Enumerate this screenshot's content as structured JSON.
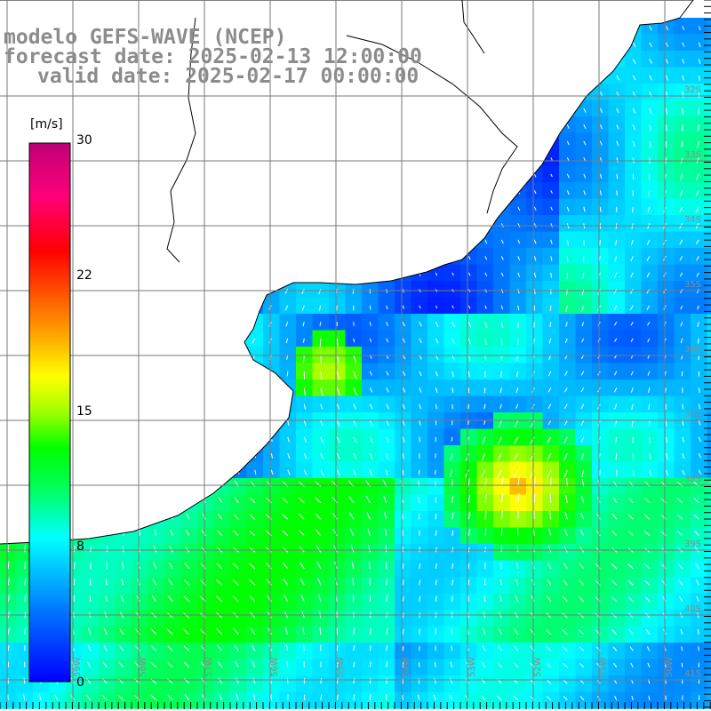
{
  "title": {
    "line1": "modelo GEFS-WAVE (NCEP)",
    "line2": "forecast date: 2025-02-13 12:00:00",
    "line3": "valid date: 2025-02-17 00:00:00"
  },
  "colorbar": {
    "unit": "[m/s]",
    "ticks": [
      "30",
      "22",
      "15",
      "8",
      "0"
    ],
    "range": [
      0,
      30
    ],
    "colors": [
      "#0000ff",
      "#00a0ff",
      "#00ffff",
      "#00ff00",
      "#a0ff00",
      "#ffff00",
      "#ff8000",
      "#ff0000",
      "#ff0080",
      "#c00080"
    ]
  },
  "lat_labels": [
    "32S",
    "33S",
    "34S",
    "35S",
    "36S",
    "37S",
    "38S",
    "39S",
    "40S",
    "41S"
  ],
  "lon_labels": [
    "59W",
    "58W",
    "57W",
    "56W",
    "55W",
    "54W",
    "53W",
    "52W",
    "51W",
    "50W"
  ],
  "colors": {
    "land": "#ffffff",
    "coast": "#000000",
    "grid": "#7a7a7a",
    "label": "#8c8c8c",
    "arrow": "#ffffff"
  }
}
